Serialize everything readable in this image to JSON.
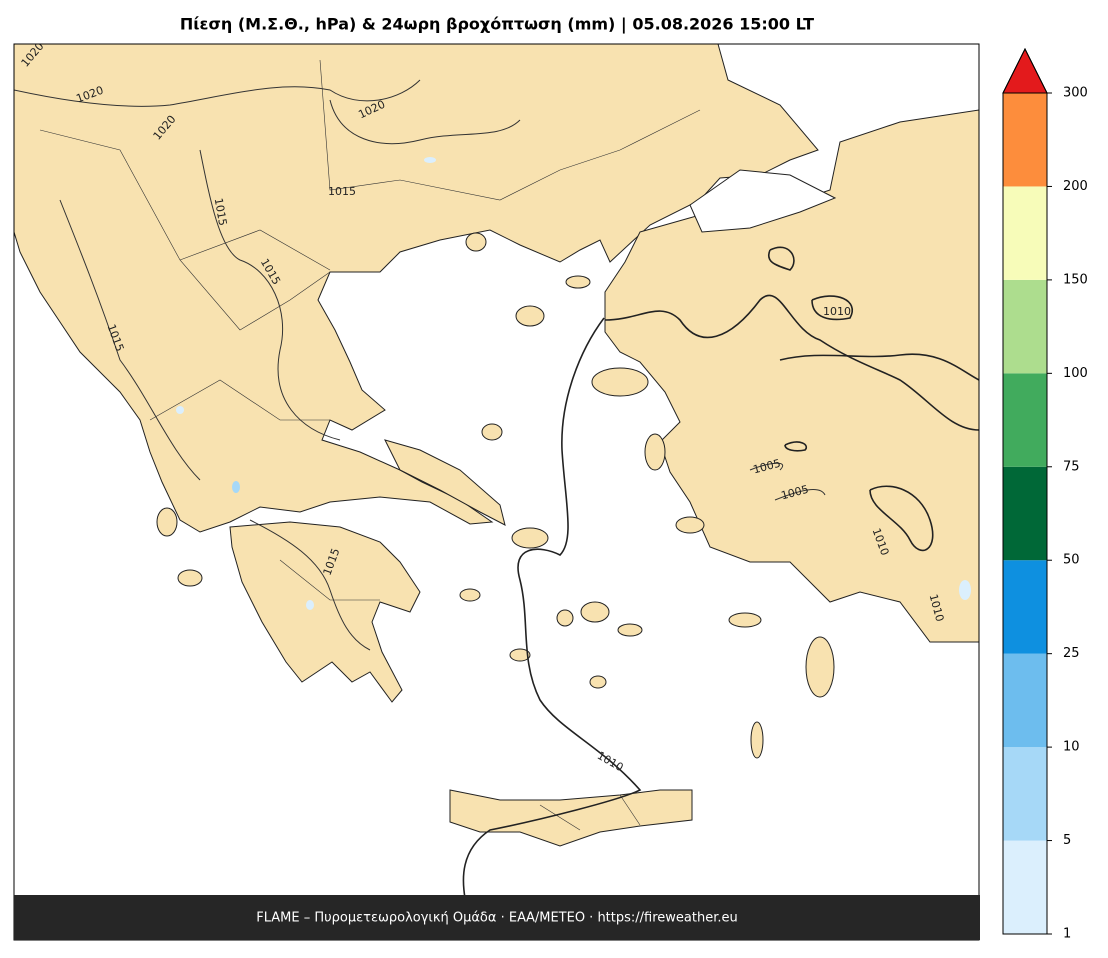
{
  "title": "Πίεση (Μ.Σ.Θ., hPa) & 24ωρη βροχόπτωση (mm)  |  05.08.2026 15:00 LT",
  "footer": "FLAME – Πυρομετεωρολογική Ομάδα · ΕΑΑ/ΜΕΤΕΟ · https://fireweather.eu",
  "contour_labels": [
    "1020",
    "1020",
    "1020",
    "1020",
    "1015",
    "1015",
    "1015",
    "1015",
    "1015",
    "1010",
    "1010",
    "1010",
    "1010",
    "1005",
    "1005"
  ],
  "colorbar": {
    "ticks": [
      1,
      5,
      10,
      25,
      50,
      75,
      100,
      150,
      200,
      300
    ],
    "colors": [
      "#dbeffd",
      "#a6d8f7",
      "#6dbdee",
      "#0e90e0",
      "#006837",
      "#41ab5d",
      "#addd8e",
      "#f7fcb9",
      "#fd8d3c"
    ],
    "extend_color": "#e31a1c"
  }
}
